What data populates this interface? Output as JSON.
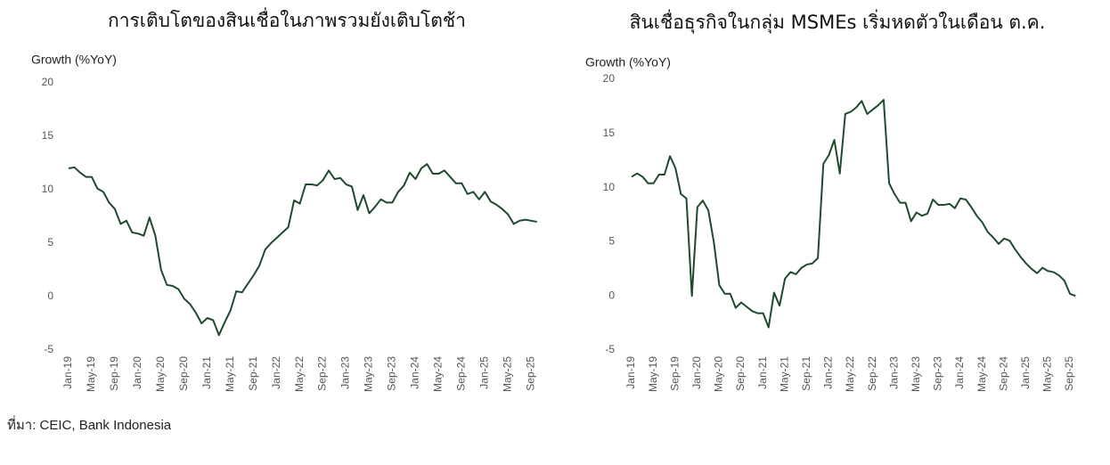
{
  "chart_data": [
    {
      "type": "line",
      "title": "การเติบโตของสินเชื่อในภาพรวมยังเติบโตช้า",
      "y_label": "Growth (%YoY)",
      "categories": [
        "Jan-19",
        null,
        null,
        null,
        "May-19",
        null,
        null,
        null,
        "Sep-19",
        null,
        null,
        null,
        "Jan-20",
        null,
        null,
        null,
        "May-20",
        null,
        null,
        null,
        "Sep-20",
        null,
        null,
        null,
        "Jan-21",
        null,
        null,
        null,
        "May-21",
        null,
        null,
        null,
        "Sep-21",
        null,
        null,
        null,
        "Jan-22",
        null,
        null,
        null,
        "May-22",
        null,
        null,
        null,
        "Sep-22",
        null,
        null,
        null,
        "Jan-23",
        null,
        null,
        null,
        "May-23",
        null,
        null,
        null,
        "Sep-23",
        null,
        null,
        null,
        "Jan-24",
        null,
        null,
        null,
        "May-24",
        null,
        null,
        null,
        "Sep-24",
        null,
        null,
        null,
        "Jan-25",
        null,
        null,
        null,
        "May-25",
        null,
        null,
        null,
        "Sep-25",
        null
      ],
      "series": [
        {
          "color": "#1e4a2e",
          "values": [
            12.0,
            12.1,
            11.6,
            11.2,
            11.2,
            10.1,
            9.8,
            8.8,
            8.2,
            6.8,
            7.1,
            6.0,
            5.9,
            5.7,
            7.4,
            5.7,
            2.5,
            1.1,
            1.0,
            0.7,
            -0.2,
            -0.7,
            -1.5,
            -2.5,
            -2.0,
            -2.2,
            -3.6,
            -2.4,
            -1.3,
            0.5,
            0.4,
            1.2,
            2.0,
            2.9,
            4.4,
            5.0,
            5.5,
            6.0,
            6.5,
            9.0,
            8.7,
            10.5,
            10.5,
            10.4,
            10.9,
            11.8,
            11.0,
            11.1,
            10.5,
            10.3,
            8.1,
            9.5,
            7.8,
            8.4,
            9.1,
            8.8,
            8.8,
            9.8,
            10.4,
            11.6,
            11.0,
            12.0,
            12.4,
            11.5,
            11.5,
            11.8,
            11.2,
            10.6,
            10.6,
            9.6,
            9.8,
            9.1,
            9.8,
            8.9,
            8.6,
            8.2,
            7.7,
            6.8,
            7.1,
            7.2,
            7.1,
            7.0
          ]
        }
      ],
      "ylim": [
        -5,
        20
      ],
      "yticks": [
        -5,
        0,
        5,
        10,
        15,
        20
      ]
    },
    {
      "type": "line",
      "title": "สินเชื่อธุรกิจในกลุ่ม MSMEs เริ่มหดตัวในเดือน ต.ค.",
      "y_label": "Growth (%YoY)",
      "categories": [
        "Jan-19",
        null,
        null,
        null,
        "May-19",
        null,
        null,
        null,
        "Sep-19",
        null,
        null,
        null,
        "Jan-20",
        null,
        null,
        null,
        "May-20",
        null,
        null,
        null,
        "Sep-20",
        null,
        null,
        null,
        "Jan-21",
        null,
        null,
        null,
        "May-21",
        null,
        null,
        null,
        "Sep-21",
        null,
        null,
        null,
        "Jan-22",
        null,
        null,
        null,
        "May-22",
        null,
        null,
        null,
        "Sep-22",
        null,
        null,
        null,
        "Jan-23",
        null,
        null,
        null,
        "May-23",
        null,
        null,
        null,
        "Sep-23",
        null,
        null,
        null,
        "Jan-24",
        null,
        null,
        null,
        "May-24",
        null,
        null,
        null,
        "Sep-24",
        null,
        null,
        null,
        "Jan-25",
        null,
        null,
        null,
        "May-25",
        null,
        null,
        null,
        "Sep-25",
        null
      ],
      "series": [
        {
          "color": "#1e4a2e",
          "values": [
            11.0,
            11.3,
            11.0,
            10.4,
            10.4,
            11.2,
            11.2,
            12.9,
            11.8,
            9.4,
            9.0,
            0.0,
            8.2,
            8.8,
            7.9,
            5.0,
            1.0,
            0.2,
            0.2,
            -1.1,
            -0.6,
            -1.0,
            -1.4,
            -1.6,
            -1.6,
            -2.9,
            0.3,
            -0.9,
            1.6,
            2.2,
            2.0,
            2.6,
            2.9,
            3.0,
            3.5,
            12.2,
            13.0,
            14.4,
            11.3,
            16.8,
            17.0,
            17.4,
            18.0,
            16.8,
            17.2,
            17.6,
            18.1,
            10.4,
            9.4,
            8.6,
            8.6,
            6.9,
            7.7,
            7.4,
            7.6,
            8.9,
            8.4,
            8.4,
            8.5,
            8.1,
            9.0,
            8.9,
            8.2,
            7.4,
            6.8,
            5.9,
            5.4,
            4.8,
            5.3,
            5.1,
            4.3,
            3.6,
            3.0,
            2.5,
            2.1,
            2.6,
            2.3,
            2.2,
            1.9,
            1.4,
            0.2,
            0.0
          ]
        }
      ],
      "ylim": [
        -5,
        20
      ],
      "yticks": [
        -5,
        0,
        5,
        10,
        15,
        20
      ]
    }
  ],
  "source": "ที่มา: CEIC, Bank Indonesia"
}
